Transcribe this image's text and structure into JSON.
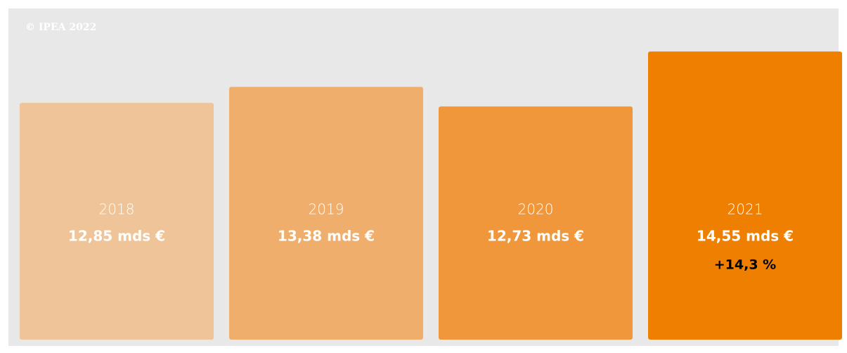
{
  "chart_data": {
    "type": "bar",
    "credit": "© IPEA 2022",
    "categories": [
      "2018",
      "2019",
      "2020",
      "2021"
    ],
    "values": [
      12.85,
      13.38,
      12.73,
      14.55
    ],
    "value_labels": [
      "12,85 mds €",
      "13,38 mds €",
      "12,73 mds €",
      "14,55 mds €"
    ],
    "colors": [
      "#efc498",
      "#efae6c",
      "#f0973c",
      "#ef7f00"
    ],
    "annotations": [
      "+14,3 %"
    ],
    "ylim": [
      5,
      15
    ]
  }
}
